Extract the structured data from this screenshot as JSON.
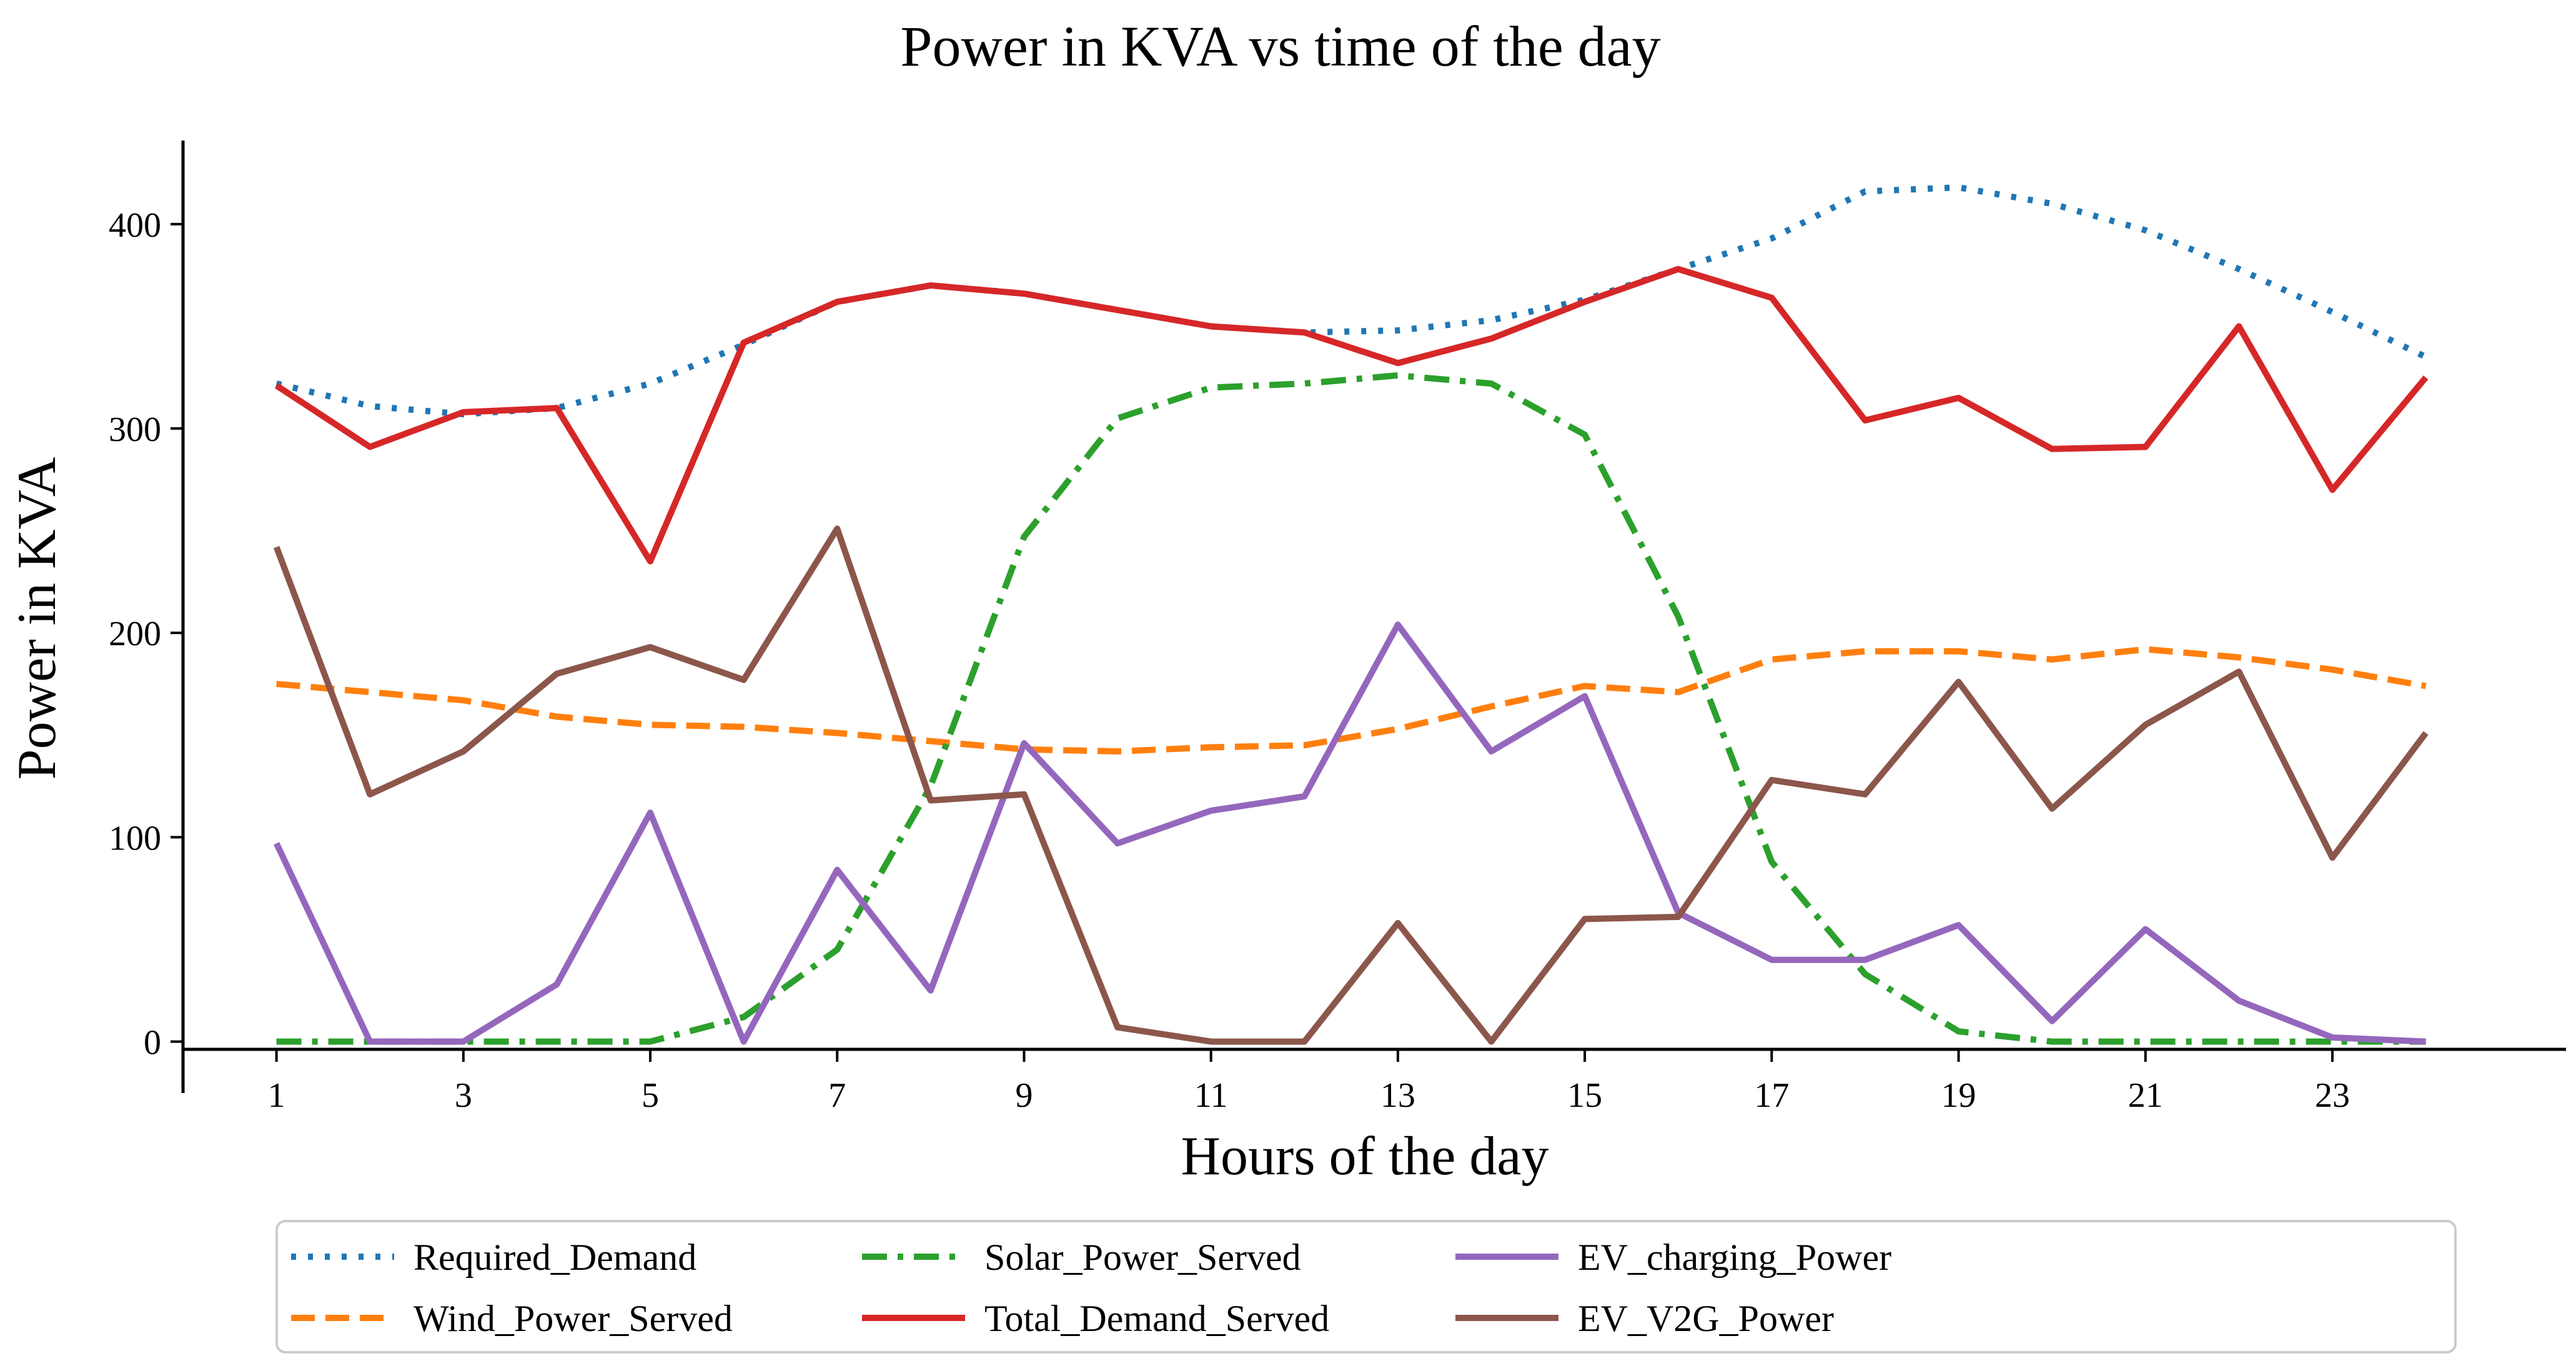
{
  "chart_data": {
    "type": "line",
    "title": "Power in KVA vs time of the day",
    "xlabel": "Hours of the day",
    "ylabel": "Power in KVA",
    "x": [
      1,
      2,
      3,
      4,
      5,
      6,
      7,
      8,
      9,
      10,
      11,
      12,
      13,
      14,
      15,
      16,
      17,
      18,
      19,
      20,
      21,
      22,
      23,
      24
    ],
    "xticks": [
      1,
      3,
      5,
      7,
      9,
      11,
      13,
      15,
      17,
      19,
      21,
      23
    ],
    "yticks": [
      0,
      100,
      200,
      300,
      400
    ],
    "xlim": [
      0,
      25.5
    ],
    "ylim": [
      -20,
      440
    ],
    "grid": false,
    "legend_position": "bottom",
    "series": [
      {
        "name": "Required_Demand",
        "color": "#1f77b4",
        "style": "dotted",
        "values": [
          322,
          311,
          307,
          310,
          322,
          341,
          362,
          370,
          366,
          358,
          350,
          347,
          348,
          353,
          363,
          378,
          393,
          416,
          418,
          410,
          397,
          378,
          357,
          335
        ]
      },
      {
        "name": "Wind_Power_Served",
        "color": "#ff7f0e",
        "style": "dashed",
        "values": [
          175,
          171,
          167,
          159,
          155,
          154,
          151,
          147,
          143,
          142,
          144,
          145,
          153,
          164,
          174,
          171,
          187,
          191,
          191,
          187,
          192,
          188,
          182,
          174
        ]
      },
      {
        "name": "Solar_Power_Served",
        "color": "#2ca02c",
        "style": "dashdot",
        "values": [
          0,
          0,
          0,
          0,
          0,
          12,
          45,
          125,
          247,
          305,
          320,
          322,
          326,
          322,
          297,
          208,
          88,
          33,
          5,
          0,
          0,
          0,
          0,
          0
        ]
      },
      {
        "name": "Total_Demand_Served",
        "color": "#d62728",
        "style": "solid",
        "values": [
          321,
          291,
          308,
          310,
          235,
          342,
          362,
          370,
          366,
          358,
          350,
          347,
          332,
          344,
          362,
          378,
          364,
          304,
          315,
          290,
          291,
          350,
          270,
          325
        ]
      },
      {
        "name": "EV_charging_Power",
        "color": "#9467bd",
        "style": "solid",
        "values": [
          97,
          0,
          0,
          28,
          112,
          0,
          84,
          25,
          146,
          97,
          113,
          120,
          204,
          142,
          169,
          63,
          40,
          40,
          57,
          10,
          55,
          20,
          2,
          0
        ]
      },
      {
        "name": "EV_V2G_Power",
        "color": "#8c564b",
        "style": "solid",
        "values": [
          242,
          121,
          142,
          180,
          193,
          177,
          251,
          118,
          121,
          7,
          0,
          0,
          58,
          0,
          60,
          61,
          128,
          121,
          176,
          114,
          155,
          181,
          90,
          151
        ]
      }
    ]
  }
}
